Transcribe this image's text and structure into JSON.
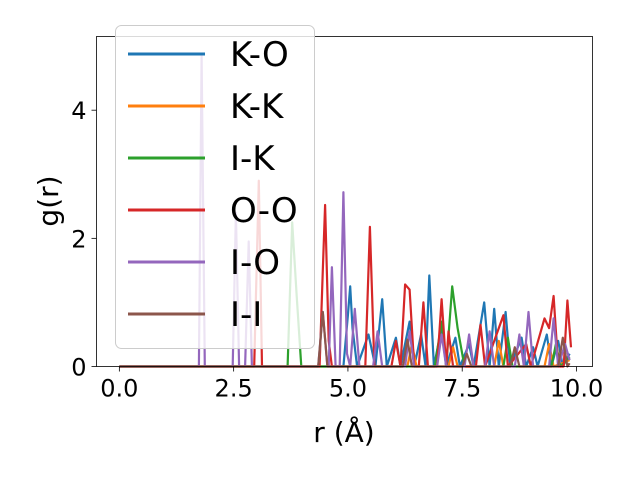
{
  "chart_data": {
    "type": "line",
    "title": "",
    "xlabel": "r (Å)",
    "ylabel": "g(r)",
    "xlim": [
      -0.5,
      10.35
    ],
    "ylim": [
      0,
      5.15
    ],
    "x_ticks": [
      0.0,
      2.5,
      5.0,
      7.5,
      10.0
    ],
    "x_tick_labels": [
      "0.0",
      "2.5",
      "5.0",
      "7.5",
      "10.0"
    ],
    "y_ticks": [
      0,
      2,
      4
    ],
    "y_tick_labels": [
      "0",
      "2",
      "4"
    ],
    "grid": false,
    "legend_position": "upper-left",
    "series": [
      {
        "name": "K-O",
        "color": "#1f77b4",
        "points": [
          [
            0,
            0
          ],
          [
            4.9,
            0
          ],
          [
            5.0,
            0.8
          ],
          [
            5.05,
            1.25
          ],
          [
            5.1,
            0.6
          ],
          [
            5.2,
            0
          ],
          [
            5.45,
            0.5
          ],
          [
            5.6,
            0
          ],
          [
            5.75,
            1.05
          ],
          [
            5.85,
            0
          ],
          [
            6.05,
            0.45
          ],
          [
            6.15,
            0
          ],
          [
            6.35,
            0.7
          ],
          [
            6.45,
            0
          ],
          [
            6.6,
            0.5
          ],
          [
            6.7,
            0
          ],
          [
            6.78,
            1.42
          ],
          [
            6.88,
            0
          ],
          [
            7.05,
            0.6
          ],
          [
            7.15,
            0
          ],
          [
            7.35,
            0.45
          ],
          [
            7.45,
            0
          ],
          [
            7.65,
            0.35
          ],
          [
            7.75,
            0
          ],
          [
            7.98,
            1.0
          ],
          [
            8.1,
            0
          ],
          [
            8.2,
            0.9
          ],
          [
            8.3,
            0
          ],
          [
            8.45,
            0.85
          ],
          [
            8.55,
            0
          ],
          [
            8.8,
            0.45
          ],
          [
            8.9,
            0
          ],
          [
            9.05,
            0.3
          ],
          [
            9.15,
            0
          ],
          [
            9.35,
            0.5
          ],
          [
            9.45,
            0
          ],
          [
            9.6,
            0.4
          ],
          [
            9.7,
            0
          ],
          [
            9.85,
            0.2
          ]
        ]
      },
      {
        "name": "K-K",
        "color": "#ff7f0e",
        "points": [
          [
            0,
            0
          ],
          [
            6.3,
            0
          ],
          [
            6.4,
            0.35
          ],
          [
            6.5,
            0
          ],
          [
            7.2,
            0
          ],
          [
            7.3,
            0.3
          ],
          [
            7.4,
            0
          ],
          [
            8.2,
            0
          ],
          [
            8.3,
            0.4
          ],
          [
            8.4,
            0
          ],
          [
            9.3,
            0
          ],
          [
            9.4,
            0.35
          ],
          [
            9.5,
            0
          ],
          [
            9.85,
            0.1
          ]
        ]
      },
      {
        "name": "I-K",
        "color": "#2ca02c",
        "points": [
          [
            0,
            0
          ],
          [
            3.68,
            0
          ],
          [
            3.78,
            2.25
          ],
          [
            3.88,
            1.1
          ],
          [
            3.98,
            0
          ],
          [
            6.9,
            0
          ],
          [
            7.05,
            0.7
          ],
          [
            7.15,
            0
          ],
          [
            7.28,
            1.25
          ],
          [
            7.4,
            0.6
          ],
          [
            7.55,
            0
          ],
          [
            8.4,
            0
          ],
          [
            8.5,
            0.45
          ],
          [
            8.6,
            0
          ],
          [
            9.45,
            0
          ],
          [
            9.55,
            0.35
          ],
          [
            9.65,
            0
          ],
          [
            9.85,
            0.15
          ]
        ]
      },
      {
        "name": "O-O",
        "color": "#d62728",
        "points": [
          [
            0,
            0
          ],
          [
            2.95,
            0
          ],
          [
            3.05,
            2.9
          ],
          [
            3.12,
            0
          ],
          [
            4.38,
            0
          ],
          [
            4.45,
            1.5
          ],
          [
            4.5,
            2.52
          ],
          [
            4.58,
            0.4
          ],
          [
            4.65,
            0
          ],
          [
            5.38,
            0
          ],
          [
            5.48,
            2.18
          ],
          [
            5.58,
            0
          ],
          [
            5.95,
            0
          ],
          [
            6.05,
            0.4
          ],
          [
            6.15,
            0
          ],
          [
            6.25,
            1.28
          ],
          [
            6.35,
            1.2
          ],
          [
            6.45,
            0
          ],
          [
            6.55,
            0
          ],
          [
            6.65,
            1.0
          ],
          [
            6.75,
            0
          ],
          [
            6.95,
            0
          ],
          [
            7.05,
            1.05
          ],
          [
            7.15,
            0
          ],
          [
            7.2,
            0.55
          ],
          [
            7.3,
            0
          ],
          [
            7.8,
            0
          ],
          [
            7.9,
            0.65
          ],
          [
            8.0,
            0
          ],
          [
            8.4,
            0.8
          ],
          [
            8.5,
            0
          ],
          [
            8.9,
            0.35
          ],
          [
            9.0,
            0
          ],
          [
            9.3,
            0.75
          ],
          [
            9.4,
            0.6
          ],
          [
            9.5,
            1.1
          ],
          [
            9.6,
            0
          ],
          [
            9.72,
            0
          ],
          [
            9.8,
            1.03
          ],
          [
            9.88,
            0.3
          ]
        ]
      },
      {
        "name": "I-O",
        "color": "#9467bd",
        "points": [
          [
            0,
            0
          ],
          [
            1.74,
            0
          ],
          [
            1.8,
            4.85
          ],
          [
            1.87,
            0
          ],
          [
            2.48,
            0
          ],
          [
            2.55,
            2.4
          ],
          [
            2.62,
            0
          ],
          [
            2.75,
            0
          ],
          [
            2.83,
            1.95
          ],
          [
            2.9,
            0
          ],
          [
            4.35,
            0
          ],
          [
            4.45,
            0.85
          ],
          [
            4.55,
            0
          ],
          [
            4.58,
            0
          ],
          [
            4.65,
            1.55
          ],
          [
            4.73,
            0
          ],
          [
            4.82,
            0
          ],
          [
            4.9,
            2.72
          ],
          [
            4.98,
            0.2
          ],
          [
            5.05,
            0
          ],
          [
            5.15,
            0.9
          ],
          [
            5.25,
            0
          ],
          [
            5.55,
            0
          ],
          [
            5.65,
            0.55
          ],
          [
            5.75,
            0
          ],
          [
            6.25,
            0
          ],
          [
            6.35,
            0.55
          ],
          [
            6.45,
            0
          ],
          [
            6.95,
            0
          ],
          [
            7.05,
            0.5
          ],
          [
            7.15,
            0
          ],
          [
            7.55,
            0
          ],
          [
            7.65,
            0.5
          ],
          [
            7.75,
            0
          ],
          [
            8.0,
            0
          ],
          [
            8.1,
            0.55
          ],
          [
            8.2,
            0
          ],
          [
            8.65,
            0
          ],
          [
            8.75,
            0.5
          ],
          [
            8.85,
            0
          ],
          [
            8.95,
            0.85
          ],
          [
            9.05,
            0
          ],
          [
            9.4,
            0
          ],
          [
            9.5,
            0.75
          ],
          [
            9.6,
            0
          ],
          [
            9.75,
            0.35
          ],
          [
            9.85,
            0.1
          ]
        ]
      },
      {
        "name": "I-I",
        "color": "#8c564b",
        "points": [
          [
            0,
            0
          ],
          [
            4.35,
            0
          ],
          [
            4.45,
            0.85
          ],
          [
            4.55,
            0
          ],
          [
            6.2,
            0
          ],
          [
            6.3,
            0.42
          ],
          [
            6.4,
            0
          ],
          [
            7.5,
            0
          ],
          [
            7.6,
            0.2
          ],
          [
            7.7,
            0
          ],
          [
            8.55,
            0
          ],
          [
            8.65,
            0.3
          ],
          [
            8.75,
            0
          ],
          [
            9.6,
            0
          ],
          [
            9.7,
            0.45
          ],
          [
            9.8,
            0
          ],
          [
            9.85,
            0.05
          ]
        ]
      }
    ]
  }
}
